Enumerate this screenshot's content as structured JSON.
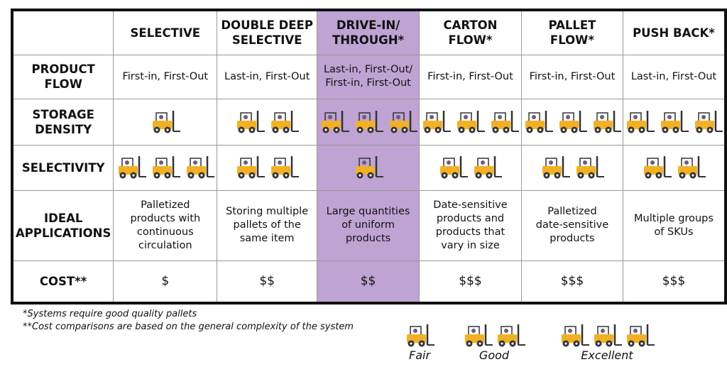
{
  "table": {
    "header": [
      "SELECTIVE",
      "DOUBLE DEEP\nSELECTIVE",
      "DRIVE-IN/\nTHROUGH*",
      "CARTON\nFLOW*",
      "PALLET\nFLOW*",
      "PUSH BACK*"
    ],
    "rows": [
      {
        "label": "PRODUCT\nFLOW",
        "cells": [
          "First-in, First-Out",
          "Last-in, First-Out",
          "Last-in, First-Out/\nFirst-in, First-Out",
          "First-in, First-Out",
          "First-in, First-Out",
          "Last-in, First-Out"
        ]
      },
      {
        "label": "STORAGE\nDENSITY",
        "counts": [
          1,
          2,
          3,
          3,
          3,
          3
        ]
      },
      {
        "label": "SELECTIVITY",
        "counts": [
          3,
          2,
          1,
          2,
          2,
          2
        ]
      },
      {
        "label": "IDEAL\nAPPLICATIONS",
        "cells": [
          "Palletized\nproducts with\ncontinuous\ncirculation",
          "Storing multiple\npallets of the\nsame item",
          "Large quantities\nof uniform\nproducts",
          "Date-sensitive\nproducts and\nproducts that\nvary in size",
          "Palletized\ndate-sensitive\nproducts",
          "Multiple groups\nof SKUs"
        ]
      },
      {
        "label": "COST**",
        "cells": [
          "$",
          "$$",
          "$$",
          "$$$",
          "$$$",
          "$$$"
        ]
      }
    ]
  },
  "footnotes": [
    "*Systems require good quality pallets",
    "**Cost comparisons are based on the general complexity of the system"
  ],
  "legend": [
    {
      "label": "Fair",
      "count": 1
    },
    {
      "label": "Good",
      "count": 2
    },
    {
      "label": "Excellent",
      "count": 3
    }
  ]
}
